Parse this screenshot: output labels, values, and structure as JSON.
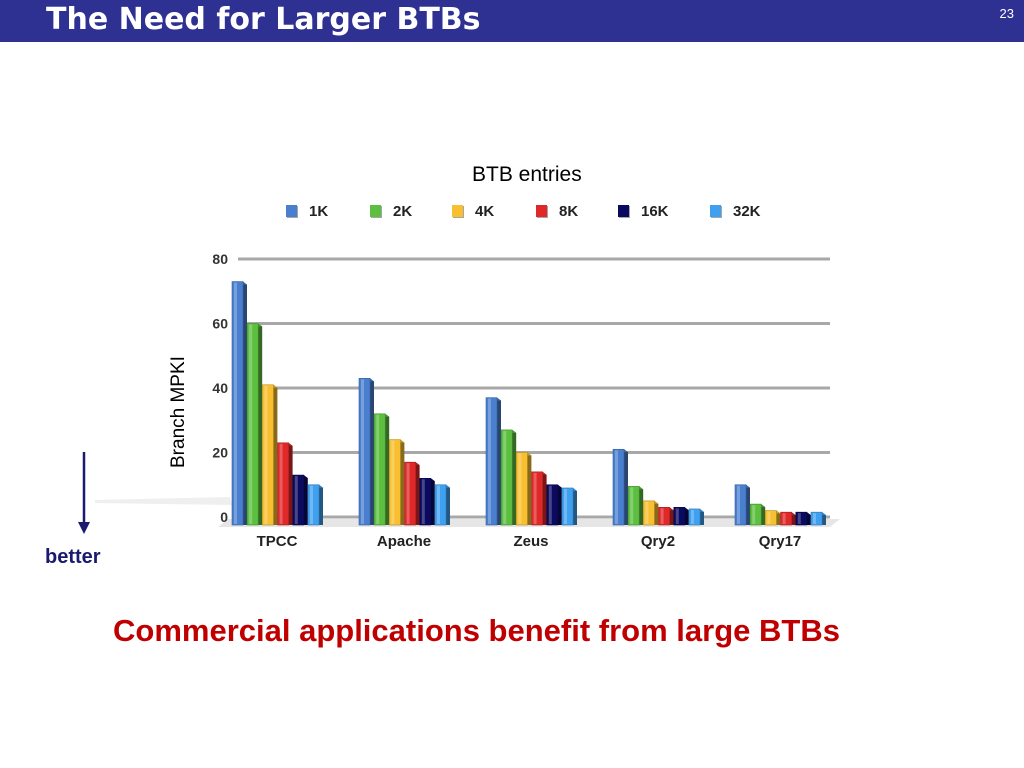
{
  "slide": {
    "title": "The Need for Larger BTBs",
    "number": "23",
    "better_label": "better",
    "conclusion": "Commercial applications benefit from large BTBs"
  },
  "chart_data": {
    "type": "bar",
    "legend_title": "BTB entries",
    "ylabel": "Branch MPKI",
    "xlabel": "",
    "ylim": [
      0,
      80
    ],
    "yticks": [
      0,
      20,
      40,
      60,
      80
    ],
    "grid": true,
    "legend_position": "top",
    "categories": [
      "TPCC",
      "Apache",
      "Zeus",
      "Qry2",
      "Qry17"
    ],
    "series": [
      {
        "name": "1K",
        "color": "#4a7fd0",
        "values": [
          73,
          43,
          37,
          21,
          10
        ]
      },
      {
        "name": "2K",
        "color": "#5cbf40",
        "values": [
          60,
          32,
          27,
          9.5,
          4
        ]
      },
      {
        "name": "4K",
        "color": "#f8c030",
        "values": [
          41,
          24,
          20,
          5,
          2
        ]
      },
      {
        "name": "8K",
        "color": "#e02828",
        "values": [
          23,
          17,
          14,
          3,
          1.5
        ]
      },
      {
        "name": "16K",
        "color": "#0a0a60",
        "values": [
          13,
          12,
          10,
          3,
          1.5
        ]
      },
      {
        "name": "32K",
        "color": "#40a0f0",
        "values": [
          10,
          10,
          9,
          2.5,
          1.5
        ]
      }
    ]
  }
}
